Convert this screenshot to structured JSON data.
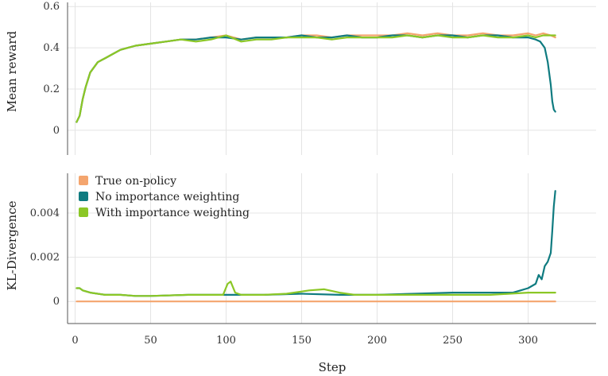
{
  "chart_data": [
    {
      "type": "line",
      "panel": "top",
      "ylabel": "Mean reward",
      "xlim": [
        -5,
        345
      ],
      "ylim": [
        -0.12,
        0.62
      ],
      "yticks": [
        0,
        0.2,
        0.4,
        0.6
      ],
      "ytick_labels": [
        "0",
        "0.2",
        "0.4",
        "0.6"
      ],
      "grid": true,
      "series": [
        {
          "name": "True on-policy",
          "color": "#F4A56E",
          "x": [
            1,
            3,
            5,
            7,
            10,
            15,
            20,
            25,
            30,
            35,
            40,
            50,
            60,
            70,
            80,
            90,
            100,
            110,
            120,
            130,
            140,
            150,
            160,
            170,
            180,
            190,
            200,
            210,
            220,
            230,
            240,
            250,
            260,
            270,
            280,
            290,
            300,
            305,
            310,
            315,
            318
          ],
          "y": [
            0.04,
            0.07,
            0.15,
            0.21,
            0.28,
            0.33,
            0.35,
            0.37,
            0.39,
            0.4,
            0.41,
            0.42,
            0.43,
            0.44,
            0.44,
            0.45,
            0.46,
            0.44,
            0.45,
            0.45,
            0.45,
            0.46,
            0.46,
            0.45,
            0.46,
            0.46,
            0.46,
            0.46,
            0.47,
            0.46,
            0.47,
            0.46,
            0.46,
            0.47,
            0.46,
            0.46,
            0.47,
            0.46,
            0.47,
            0.46,
            0.45
          ]
        },
        {
          "name": "No importance weighting",
          "color": "#0F7B80",
          "x": [
            1,
            3,
            5,
            7,
            10,
            15,
            20,
            25,
            30,
            35,
            40,
            50,
            60,
            70,
            80,
            90,
            100,
            110,
            120,
            130,
            140,
            150,
            160,
            170,
            180,
            190,
            200,
            210,
            220,
            230,
            240,
            250,
            260,
            270,
            280,
            290,
            300,
            305,
            308,
            311,
            313,
            315,
            316,
            317,
            318
          ],
          "y": [
            0.04,
            0.07,
            0.15,
            0.21,
            0.28,
            0.33,
            0.35,
            0.37,
            0.39,
            0.4,
            0.41,
            0.42,
            0.43,
            0.44,
            0.44,
            0.45,
            0.45,
            0.44,
            0.45,
            0.45,
            0.45,
            0.46,
            0.45,
            0.45,
            0.46,
            0.45,
            0.45,
            0.46,
            0.46,
            0.45,
            0.46,
            0.46,
            0.45,
            0.46,
            0.46,
            0.45,
            0.45,
            0.44,
            0.43,
            0.4,
            0.33,
            0.22,
            0.14,
            0.1,
            0.09
          ]
        },
        {
          "name": "With importance weighting",
          "color": "#8BC726",
          "x": [
            1,
            3,
            5,
            7,
            10,
            15,
            20,
            25,
            30,
            35,
            40,
            50,
            60,
            70,
            80,
            90,
            100,
            110,
            120,
            130,
            140,
            150,
            160,
            170,
            180,
            190,
            200,
            210,
            220,
            230,
            240,
            250,
            260,
            270,
            280,
            290,
            300,
            305,
            310,
            315,
            318
          ],
          "y": [
            0.04,
            0.07,
            0.15,
            0.21,
            0.28,
            0.33,
            0.35,
            0.37,
            0.39,
            0.4,
            0.41,
            0.42,
            0.43,
            0.44,
            0.43,
            0.44,
            0.46,
            0.43,
            0.44,
            0.44,
            0.45,
            0.45,
            0.45,
            0.44,
            0.45,
            0.45,
            0.45,
            0.45,
            0.46,
            0.45,
            0.46,
            0.45,
            0.45,
            0.46,
            0.45,
            0.45,
            0.46,
            0.45,
            0.46,
            0.46,
            0.46
          ]
        }
      ]
    },
    {
      "type": "line",
      "panel": "bottom",
      "xlabel": "Step",
      "ylabel": "KL-Divergence",
      "xlim": [
        -5,
        345
      ],
      "ylim": [
        -0.001,
        0.0058
      ],
      "xticks": [
        0,
        50,
        100,
        150,
        200,
        250,
        300
      ],
      "xtick_labels": [
        "0",
        "50",
        "100",
        "150",
        "200",
        "250",
        "300"
      ],
      "yticks": [
        0,
        0.002,
        0.004
      ],
      "ytick_labels": [
        "0",
        "0.002",
        "0.004"
      ],
      "grid": true,
      "legend": "top-left",
      "series": [
        {
          "name": "True on-policy",
          "color": "#F4A56E",
          "x": [
            1,
            318
          ],
          "y": [
            0,
            0
          ]
        },
        {
          "name": "No importance weighting",
          "color": "#0F7B80",
          "x": [
            1,
            3,
            5,
            10,
            20,
            30,
            40,
            50,
            75,
            100,
            125,
            150,
            175,
            200,
            225,
            250,
            275,
            290,
            295,
            300,
            305,
            307,
            309,
            311,
            313,
            315,
            316,
            317,
            318
          ],
          "y": [
            0.0006,
            0.0006,
            0.0005,
            0.0004,
            0.0003,
            0.0003,
            0.00025,
            0.00025,
            0.0003,
            0.0003,
            0.0003,
            0.00035,
            0.0003,
            0.0003,
            0.00035,
            0.0004,
            0.0004,
            0.0004,
            0.0005,
            0.0006,
            0.0008,
            0.0012,
            0.001,
            0.0016,
            0.0018,
            0.0022,
            0.0032,
            0.0043,
            0.005
          ]
        },
        {
          "name": "With importance weighting",
          "color": "#8BC726",
          "x": [
            1,
            3,
            5,
            10,
            20,
            30,
            40,
            50,
            75,
            98,
            101,
            103,
            106,
            110,
            125,
            140,
            155,
            165,
            175,
            185,
            200,
            225,
            250,
            275,
            300,
            318
          ],
          "y": [
            0.0006,
            0.0006,
            0.0005,
            0.0004,
            0.0003,
            0.0003,
            0.00025,
            0.00025,
            0.0003,
            0.0003,
            0.0008,
            0.0009,
            0.0004,
            0.0003,
            0.0003,
            0.00035,
            0.0005,
            0.00055,
            0.0004,
            0.0003,
            0.0003,
            0.0003,
            0.0003,
            0.0003,
            0.0004,
            0.0004
          ]
        }
      ]
    }
  ]
}
